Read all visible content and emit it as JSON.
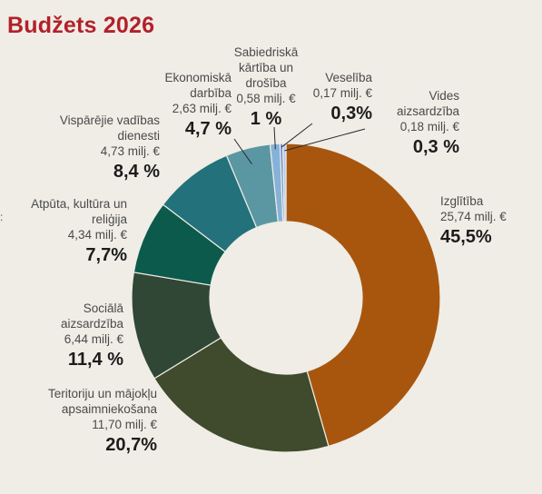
{
  "title": "Budžets 2026",
  "stray_mark": ":",
  "chart_data": {
    "type": "pie",
    "unit": "milj. €",
    "colors": {
      "Izglītība": "#a8560e",
      "Teritoriju un mājokļu apsaimniekošana": "#3f4b2c",
      "Sociālā aizsardzība": "#304735",
      "Atpūta, kultūra un reliģija": "#0c5a4c",
      "Vispārējie vadības dienesti": "#23717a",
      "Ekonomiskā darbība": "#5b97a3",
      "Sabiedriskā kārtība un drošība": "#86b2d8",
      "Veselība": "#6c8fd2",
      "Vides aizsardzība": "#b3c7ec"
    },
    "slices": [
      {
        "name": "Izglītība",
        "value": 25.74,
        "value_label": "25,74 milj. €",
        "percent": 45.5,
        "percent_label": "45,5%"
      },
      {
        "name": "Teritoriju un mājokļu apsaimniekošana",
        "value": 11.7,
        "value_label": "11,70 milj. €",
        "percent": 20.7,
        "percent_label": "20,7%"
      },
      {
        "name": "Sociālā aizsardzība",
        "value": 6.44,
        "value_label": "6,44 milj. €",
        "percent": 11.4,
        "percent_label": "11,4 %"
      },
      {
        "name": "Atpūta, kultūra un reliģija",
        "value": 4.34,
        "value_label": "4,34 milj. €",
        "percent": 7.7,
        "percent_label": "7,7%"
      },
      {
        "name": "Vispārējie vadības dienesti",
        "value": 4.73,
        "value_label": "4,73 milj. €",
        "percent": 8.4,
        "percent_label": "8,4 %"
      },
      {
        "name": "Ekonomiskā darbība",
        "value": 2.63,
        "value_label": "2,63 milj. €",
        "percent": 4.7,
        "percent_label": "4,7 %"
      },
      {
        "name": "Sabiedriskā kārtība un drošība",
        "value": 0.58,
        "value_label": "0,58 milj. €",
        "percent": 1,
        "percent_label": "1 %"
      },
      {
        "name": "Veselība",
        "value": 0.17,
        "value_label": "0,17 milj. €",
        "percent": 0.3,
        "percent_label": "0,3%"
      },
      {
        "name": "Vides aizsardzība",
        "value": 0.18,
        "value_label": "0,18 milj. €",
        "percent": 0.3,
        "percent_label": "0,3 %"
      }
    ]
  }
}
